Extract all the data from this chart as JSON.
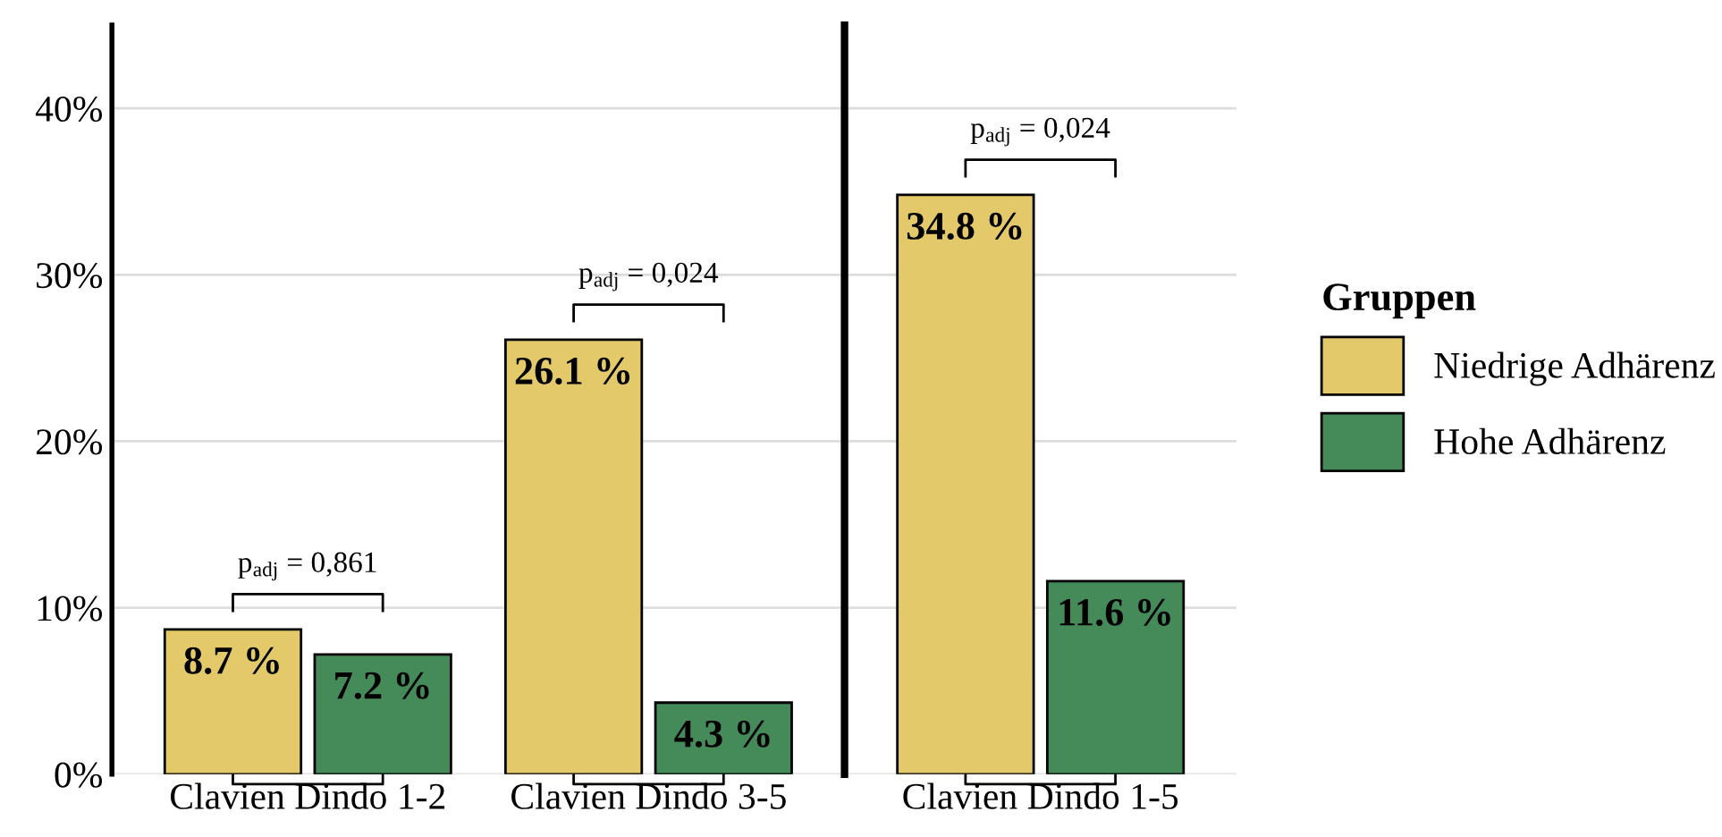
{
  "chart_data": [
    {
      "type": "bar",
      "categories": [
        "Clavien Dindo 1-2",
        "Clavien Dindo 3-5"
      ],
      "series": [
        {
          "name": "Niedrige Adhärenz",
          "color": "#e3c96a",
          "values": [
            8.7,
            26.1
          ],
          "value_labels": [
            "8.7 %",
            "26.1 %"
          ]
        },
        {
          "name": "Hohe Adhärenz",
          "color": "#458b5a",
          "values": [
            7.2,
            4.3
          ],
          "value_labels": [
            "7.2 %",
            "4.3 %"
          ]
        }
      ],
      "ylim": [
        0,
        45
      ],
      "yticks": [
        {
          "value": 0,
          "label": "0%"
        },
        {
          "value": 10,
          "label": "10%"
        },
        {
          "value": 20,
          "label": "20%"
        },
        {
          "value": 30,
          "label": "30%"
        },
        {
          "value": 40,
          "label": "40%"
        }
      ],
      "grid": "y",
      "legend_title": "Gruppen",
      "legend": "right",
      "annotations": [
        "p$_{adj}$ = 0,861",
        "p$_{adj}$ = 0,024"
      ]
    },
    {
      "type": "bar",
      "categories": [
        "Clavien Dindo 1-5"
      ],
      "series": [
        {
          "color": "#e3c96a",
          "values": [
            34.8
          ],
          "value_labels": [
            "34.8 %"
          ]
        },
        {
          "color": "#458b5a",
          "values": [
            11.6
          ],
          "value_labels": [
            "11.6 %"
          ]
        }
      ],
      "tick_labels": "x",
      "grid": "y",
      "annotations": [
        "p$_{adj}$ = 0,024"
      ]
    }
  ]
}
